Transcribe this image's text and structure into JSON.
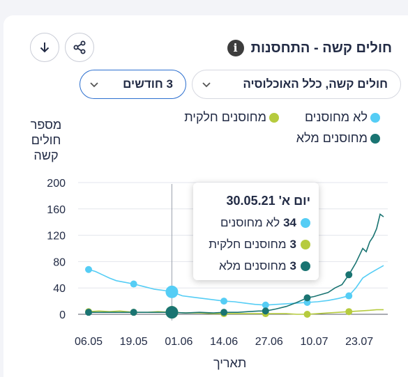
{
  "header": {
    "title": "חולים קשה - התחסנות",
    "info_icon": "info-icon",
    "download_icon": "download-arrow-icon",
    "share_icon": "share-icon"
  },
  "filters": {
    "population": "חולים קשה, כלל האוכלוסיה",
    "period": "3 חודשים",
    "period_border_color": "#2c6fcf"
  },
  "legend": {
    "unvaccinated": "לא מחוסנים",
    "partial": "מחוסנים חלקית",
    "full": "מחוסנים מלא"
  },
  "tooltip": {
    "date": "יום א' 30.05.21",
    "rows": [
      {
        "value": "34",
        "label": "לא מחוסנים"
      },
      {
        "value": "3",
        "label": "מחוסנים חלקית"
      },
      {
        "value": "3",
        "label": "מחוסנים מלא"
      }
    ]
  },
  "chart_data": {
    "type": "line",
    "xlabel": "תאריך",
    "ylabel": "מספר חולים קשה",
    "ylim": [
      0,
      200
    ],
    "yticks": [
      0,
      40,
      80,
      120,
      160,
      200
    ],
    "xticks": [
      "06.05",
      "19.05",
      "01.06",
      "14.06",
      "27.06",
      "10.07",
      "23.07"
    ],
    "x_range_days": [
      0,
      85
    ],
    "grid": true,
    "crosshair_day": 24,
    "colors": {
      "unvaccinated": "#55cdf5",
      "partial": "#b6cb3e",
      "full": "#1a7472"
    },
    "series": [
      {
        "name": "לא מחוסנים",
        "key": "unvaccinated",
        "points": [
          [
            0,
            68
          ],
          [
            2,
            65
          ],
          [
            4,
            60
          ],
          [
            6,
            55
          ],
          [
            8,
            51
          ],
          [
            10,
            49
          ],
          [
            13,
            46
          ],
          [
            16,
            42
          ],
          [
            19,
            38
          ],
          [
            22,
            36
          ],
          [
            24,
            34
          ],
          [
            27,
            28
          ],
          [
            30,
            26
          ],
          [
            33,
            24
          ],
          [
            36,
            22
          ],
          [
            39,
            20
          ],
          [
            42,
            19
          ],
          [
            45,
            17
          ],
          [
            48,
            15
          ],
          [
            51,
            14
          ],
          [
            54,
            15
          ],
          [
            57,
            16
          ],
          [
            60,
            17
          ],
          [
            63,
            18
          ],
          [
            66,
            19
          ],
          [
            69,
            21
          ],
          [
            72,
            24
          ],
          [
            75,
            28
          ],
          [
            77,
            40
          ],
          [
            79,
            55
          ],
          [
            81,
            62
          ],
          [
            83,
            68
          ],
          [
            85,
            74
          ]
        ],
        "markers": [
          0,
          13,
          24,
          39,
          51,
          63,
          75
        ]
      },
      {
        "name": "מחוסנים חלקית",
        "key": "partial",
        "points": [
          [
            0,
            4
          ],
          [
            3,
            5
          ],
          [
            6,
            4
          ],
          [
            9,
            5
          ],
          [
            13,
            3
          ],
          [
            17,
            3
          ],
          [
            20,
            4
          ],
          [
            24,
            3
          ],
          [
            28,
            2
          ],
          [
            32,
            2
          ],
          [
            36,
            1
          ],
          [
            40,
            1
          ],
          [
            44,
            1
          ],
          [
            48,
            1
          ],
          [
            51,
            1
          ],
          [
            54,
            1
          ],
          [
            57,
            1
          ],
          [
            60,
            0
          ],
          [
            63,
            0
          ],
          [
            66,
            1
          ],
          [
            69,
            2
          ],
          [
            72,
            3
          ],
          [
            75,
            4
          ],
          [
            78,
            5
          ],
          [
            81,
            6
          ],
          [
            83,
            7
          ],
          [
            85,
            7
          ]
        ],
        "markers": [
          0,
          13,
          24,
          39,
          51,
          63,
          75
        ]
      },
      {
        "name": "מחוסנים מלא",
        "key": "full",
        "points": [
          [
            0,
            3
          ],
          [
            4,
            3
          ],
          [
            8,
            3
          ],
          [
            13,
            3
          ],
          [
            18,
            3
          ],
          [
            24,
            3
          ],
          [
            28,
            2
          ],
          [
            32,
            3
          ],
          [
            36,
            2
          ],
          [
            39,
            3
          ],
          [
            43,
            3
          ],
          [
            46,
            4
          ],
          [
            49,
            5
          ],
          [
            51,
            5
          ],
          [
            54,
            8
          ],
          [
            57,
            12
          ],
          [
            60,
            18
          ],
          [
            63,
            25
          ],
          [
            65,
            27
          ],
          [
            67,
            30
          ],
          [
            69,
            33
          ],
          [
            71,
            40
          ],
          [
            73,
            45
          ],
          [
            75,
            60
          ],
          [
            77,
            78
          ],
          [
            79,
            100
          ],
          [
            80,
            95
          ],
          [
            81,
            110
          ],
          [
            82,
            118
          ],
          [
            83,
            130
          ],
          [
            84,
            152
          ],
          [
            85,
            148
          ]
        ],
        "markers": [
          0,
          13,
          24,
          39,
          51,
          63,
          75
        ]
      }
    ]
  }
}
